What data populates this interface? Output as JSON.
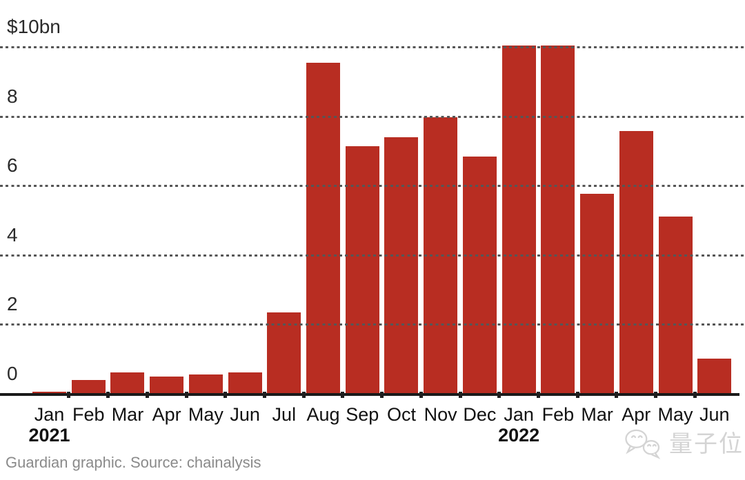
{
  "chart_data": {
    "type": "bar",
    "unit": "$bn",
    "bar_color": "#b82d22",
    "x_labels": [
      "Jan",
      "Feb",
      "Mar",
      "Apr",
      "May",
      "Jun",
      "Jul",
      "Aug",
      "Sep",
      "Oct",
      "Nov",
      "Dec",
      "Jan",
      "Feb",
      "Mar",
      "Apr",
      "May",
      "Jun"
    ],
    "year_labels": [
      {
        "text": "2021",
        "bar_index": 0
      },
      {
        "text": "2022",
        "bar_index": 12
      }
    ],
    "values": [
      0.07,
      0.41,
      0.63,
      0.52,
      0.57,
      0.64,
      2.36,
      9.56,
      7.16,
      7.42,
      8.0,
      6.86,
      10.06,
      10.06,
      5.78,
      7.6,
      5.13,
      1.03
    ],
    "y_ticks": [
      {
        "value": 0,
        "label": "0"
      },
      {
        "value": 2,
        "label": "2"
      },
      {
        "value": 4,
        "label": "4"
      },
      {
        "value": 6,
        "label": "6"
      },
      {
        "value": 8,
        "label": "8"
      },
      {
        "value": 10,
        "label": "$10bn"
      }
    ],
    "ylim": [
      0,
      10.5
    ],
    "grid": "dotted horizontal lines drawn above bars",
    "legend": "none",
    "axis_line_color": "#1a1a1a",
    "gridline_dot_color": "#565656"
  },
  "footer": {
    "credit": "Guardian graphic. Source: chainalysis"
  },
  "watermark": {
    "icon": "wechat-icon",
    "text": "量子位",
    "color": "#d4d4d4"
  }
}
